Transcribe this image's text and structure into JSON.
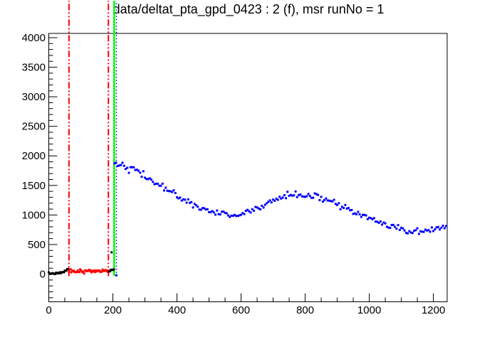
{
  "title": "data/deltat_pta_gpd_0423 : 2 (f), msr runNo = 1",
  "chart_data": {
    "type": "scatter",
    "title": "data/deltat_pta_gpd_0423 : 2 (f), msr runNo = 1",
    "xlabel": "",
    "ylabel": "",
    "xlim": [
      0,
      1243
    ],
    "ylim": [
      -469,
      4072
    ],
    "grid": false,
    "legend": false,
    "x_ticks": {
      "major": [
        0,
        200,
        400,
        600,
        800,
        1000,
        1200
      ],
      "minor_step": 50,
      "major_step": 200
    },
    "y_ticks": {
      "major": [
        0,
        500,
        1000,
        1500,
        2000,
        2500,
        3000,
        3500,
        4000
      ],
      "minor_step": 100,
      "major_step": 500
    },
    "vertical_lines": [
      {
        "name": "background-range-start-line",
        "x": 63,
        "y_from": -35,
        "y_to": 4625,
        "color": "#ff0000",
        "style": "dash-dot-dot",
        "width": 2
      },
      {
        "name": "background-range-end-line",
        "x": 186,
        "y_from": -35,
        "y_to": 4625,
        "color": "#ff0000",
        "style": "dash-dot-dot",
        "width": 2
      },
      {
        "name": "t0-line",
        "x": 204,
        "y_from": -35,
        "y_to": 4625,
        "color": "#00ff00",
        "style": "solid",
        "width": 2.5
      },
      {
        "name": "first-good-bin-line",
        "x": 211,
        "y_from": -35,
        "y_to": 4625,
        "color": "#0000ff",
        "style": "dotted",
        "width": 1.5
      }
    ],
    "series": [
      {
        "name": "pre-data-black",
        "color": "#000000",
        "marker": "square",
        "marker_px": 3,
        "bin_width": 2.5,
        "noise_sigma": 7,
        "seed": 7,
        "anchors": [
          [
            0,
            8
          ],
          [
            10,
            10
          ],
          [
            20,
            12
          ],
          [
            30,
            15
          ],
          [
            38,
            20
          ],
          [
            46,
            32
          ],
          [
            52,
            55
          ],
          [
            58,
            80
          ],
          [
            62,
            95
          ]
        ],
        "extra_points": []
      },
      {
        "name": "background-window-red",
        "color": "#ff0000",
        "marker": "square",
        "marker_px": 3,
        "bin_width": 2.5,
        "noise_sigma": 14,
        "seed": 13,
        "anchors": [
          [
            63,
            48
          ],
          [
            90,
            46
          ],
          [
            120,
            50
          ],
          [
            150,
            52
          ],
          [
            186,
            50
          ]
        ],
        "extra_points": []
      },
      {
        "name": "pre-t0-black",
        "color": "#000000",
        "marker": "square",
        "marker_px": 3,
        "bin_width": 2.5,
        "noise_sigma": 10,
        "seed": 21,
        "anchors": [
          [
            188,
            55
          ],
          [
            194,
            65
          ],
          [
            200,
            78
          ],
          [
            203,
            85
          ]
        ],
        "extra_points": [
          [
            196,
            368
          ]
        ]
      },
      {
        "name": "good-data-blue",
        "color": "#0000ff",
        "marker": "square",
        "marker_px": 3,
        "bin_width": 5,
        "noise_sigma": 28,
        "seed": 42,
        "anchors": [
          [
            205,
            1900
          ],
          [
            220,
            1870
          ],
          [
            240,
            1830
          ],
          [
            260,
            1780
          ],
          [
            280,
            1720
          ],
          [
            300,
            1655
          ],
          [
            320,
            1590
          ],
          [
            340,
            1520
          ],
          [
            360,
            1455
          ],
          [
            380,
            1390
          ],
          [
            400,
            1330
          ],
          [
            420,
            1270
          ],
          [
            440,
            1215
          ],
          [
            460,
            1160
          ],
          [
            480,
            1105
          ],
          [
            500,
            1060
          ],
          [
            530,
            1020
          ],
          [
            560,
            1000
          ],
          [
            590,
            1010
          ],
          [
            620,
            1045
          ],
          [
            650,
            1110
          ],
          [
            680,
            1190
          ],
          [
            710,
            1265
          ],
          [
            740,
            1320
          ],
          [
            770,
            1345
          ],
          [
            800,
            1340
          ],
          [
            830,
            1310
          ],
          [
            860,
            1265
          ],
          [
            890,
            1205
          ],
          [
            920,
            1135
          ],
          [
            950,
            1060
          ],
          [
            980,
            985
          ],
          [
            1010,
            915
          ],
          [
            1040,
            850
          ],
          [
            1070,
            795
          ],
          [
            1100,
            755
          ],
          [
            1130,
            725
          ],
          [
            1160,
            718
          ],
          [
            1190,
            735
          ],
          [
            1220,
            770
          ],
          [
            1243,
            810
          ]
        ],
        "extra_points": [
          [
            211,
            -20
          ]
        ]
      }
    ],
    "frame_color": "#000000",
    "background_color": "#ffffff"
  }
}
